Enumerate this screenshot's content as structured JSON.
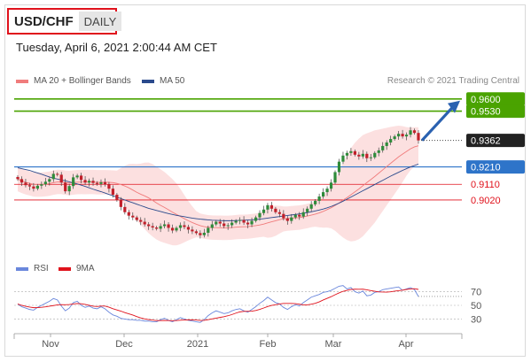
{
  "header": {
    "symbol": "USD/CHF",
    "timeframe": "DAILY"
  },
  "timestamp": "Tuesday, April 6, 2021 2:00:44 AM CET",
  "legend": {
    "ma_bb": "MA 20 + Bollinger Bands",
    "ma50": "MA 50",
    "rsi": "RSI",
    "ma9": "9MA"
  },
  "credit": "Research © 2021 Trading Central",
  "colors": {
    "target_green": "#4aa300",
    "current_dark": "#222222",
    "pivot_blue": "#2e74c9",
    "support_red": "#e0121c",
    "ma50": "#2b4a8c",
    "bb_fill": "#fbd5d5",
    "ma20": "#f07c7c",
    "rsi": "#6a87dc",
    "arrow": "#2a61b0"
  },
  "chart_data": [
    {
      "type": "line",
      "title": "",
      "xlabel": "",
      "ylabel": "",
      "ylim": [
        0.872,
        0.966
      ],
      "x_ticks": [
        "Nov",
        "Dec",
        "2021",
        "Feb",
        "Mar",
        "Apr"
      ],
      "levels": [
        {
          "value": 0.96,
          "label": "0.9600",
          "kind": "target"
        },
        {
          "value": 0.953,
          "label": "0.9530",
          "kind": "target"
        },
        {
          "value": 0.9362,
          "label": "0.9362",
          "kind": "current"
        },
        {
          "value": 0.921,
          "label": "0.9210",
          "kind": "pivot"
        },
        {
          "value": 0.911,
          "label": "0.9110",
          "kind": "support"
        },
        {
          "value": 0.902,
          "label": "0.9020",
          "kind": "support"
        }
      ],
      "close": [
        0.914,
        0.912,
        0.9105,
        0.9098,
        0.9085,
        0.9102,
        0.911,
        0.9125,
        0.914,
        0.917,
        0.9165,
        0.912,
        0.907,
        0.91,
        0.915,
        0.916,
        0.9135,
        0.912,
        0.913,
        0.9118,
        0.9112,
        0.9122,
        0.911,
        0.9085,
        0.905,
        0.902,
        0.898,
        0.895,
        0.893,
        0.892,
        0.8905,
        0.8895,
        0.888,
        0.887,
        0.8862,
        0.8855,
        0.887,
        0.888,
        0.886,
        0.8845,
        0.886,
        0.8875,
        0.8865,
        0.885,
        0.884,
        0.883,
        0.8818,
        0.8832,
        0.886,
        0.888,
        0.8895,
        0.8885,
        0.887,
        0.8875,
        0.889,
        0.89,
        0.8905,
        0.889,
        0.888,
        0.89,
        0.892,
        0.8945,
        0.8965,
        0.899,
        0.897,
        0.895,
        0.894,
        0.8915,
        0.89,
        0.892,
        0.8935,
        0.8925,
        0.895,
        0.897,
        0.8995,
        0.9015,
        0.904,
        0.9065,
        0.9085,
        0.912,
        0.918,
        0.924,
        0.9275,
        0.929,
        0.93,
        0.928,
        0.927,
        0.9285,
        0.926,
        0.9265,
        0.929,
        0.9305,
        0.933,
        0.935,
        0.937,
        0.9385,
        0.94,
        0.9385,
        0.9395,
        0.942,
        0.9405,
        0.9362
      ],
      "ma50": [
        0.9205,
        0.92,
        0.9195,
        0.919,
        0.9182,
        0.9175,
        0.9168,
        0.916,
        0.9152,
        0.9145,
        0.914,
        0.9135,
        0.913,
        0.9124,
        0.9118,
        0.9112,
        0.9105,
        0.9098,
        0.909,
        0.9082,
        0.9075,
        0.9068,
        0.906,
        0.9052,
        0.9044,
        0.9036,
        0.9028,
        0.902,
        0.9012,
        0.9004,
        0.8996,
        0.8988,
        0.898,
        0.8972,
        0.8966,
        0.896,
        0.8954,
        0.8948,
        0.8942,
        0.8937,
        0.8932,
        0.8928,
        0.8924,
        0.892,
        0.8916,
        0.8913,
        0.891,
        0.8908,
        0.8906,
        0.8904,
        0.8903,
        0.8902,
        0.8901,
        0.8901,
        0.8901,
        0.8902,
        0.8903,
        0.8904,
        0.8905,
        0.8906,
        0.8908,
        0.891,
        0.8913,
        0.8916,
        0.8919,
        0.8922,
        0.8925,
        0.8928,
        0.8931,
        0.8934,
        0.8937,
        0.894,
        0.8944,
        0.8948,
        0.8952,
        0.8957,
        0.8962,
        0.8968,
        0.8975,
        0.8983,
        0.8992,
        0.9002,
        0.9013,
        0.9025,
        0.9037,
        0.9049,
        0.9061,
        0.9073,
        0.9085,
        0.9097,
        0.9109,
        0.9121,
        0.9133,
        0.9145,
        0.9157,
        0.9168,
        0.9179,
        0.919,
        0.92,
        0.921,
        0.9218,
        0.9226
      ],
      "rsi": [
        52,
        48,
        46,
        44,
        43,
        47,
        50,
        53,
        56,
        60,
        58,
        49,
        42,
        46,
        54,
        56,
        50,
        47,
        49,
        46,
        45,
        48,
        45,
        40,
        36,
        34,
        31,
        30,
        29,
        29,
        28,
        28,
        27,
        27,
        26,
        26,
        29,
        31,
        28,
        26,
        29,
        32,
        30,
        28,
        27,
        26,
        25,
        29,
        35,
        39,
        42,
        40,
        38,
        39,
        42,
        44,
        45,
        42,
        40,
        44,
        48,
        53,
        57,
        62,
        58,
        54,
        52,
        47,
        44,
        48,
        51,
        49,
        54,
        58,
        62,
        64,
        66,
        69,
        70,
        72,
        75,
        78,
        79,
        74,
        76,
        70,
        68,
        71,
        64,
        65,
        69,
        70,
        73,
        74,
        75,
        76,
        77,
        72,
        74,
        76,
        73,
        63
      ],
      "rsi_ticks": [
        70,
        50,
        30
      ]
    }
  ]
}
